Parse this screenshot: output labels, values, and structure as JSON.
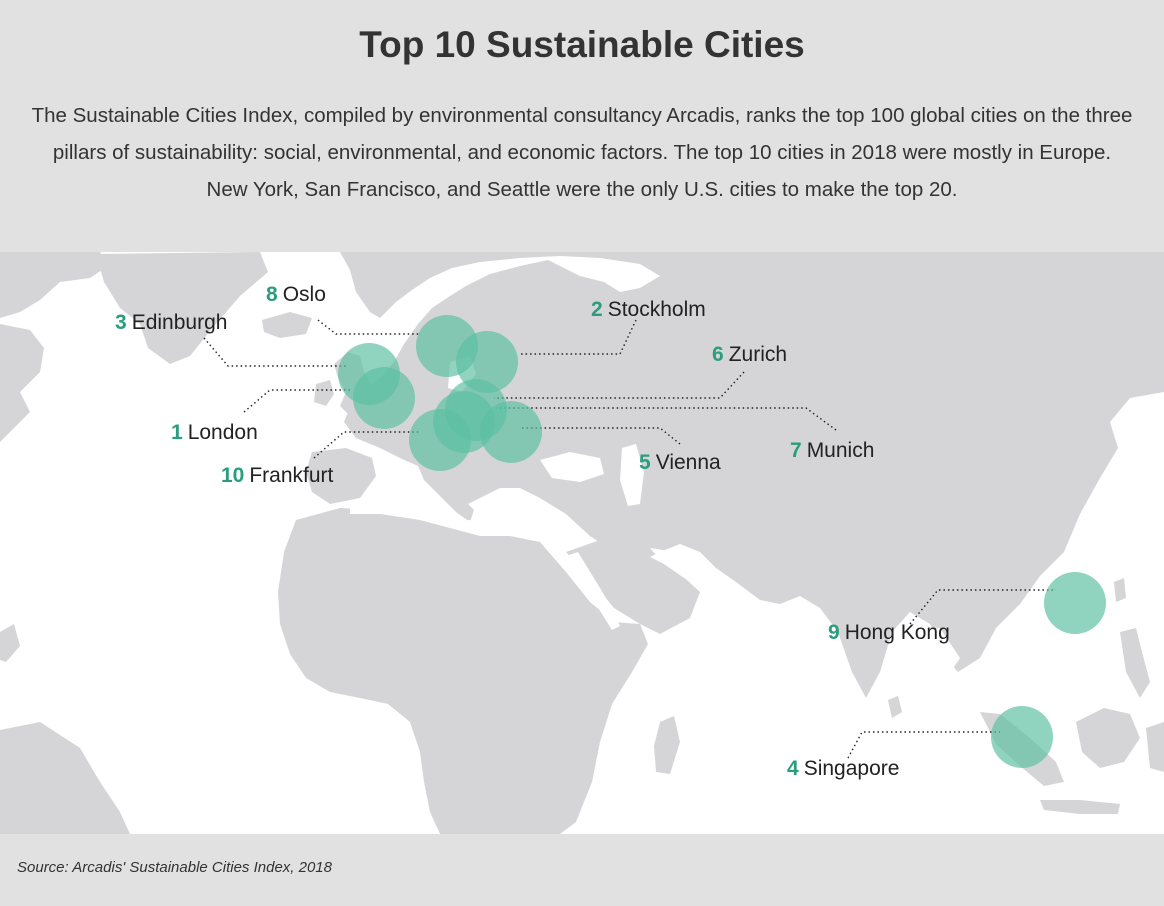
{
  "title": "Top 10 Sustainable Cities",
  "description": "The Sustainable Cities Index, compiled by environmental consultancy Arcadis, ranks the top 100 global cities on the three pillars of sustainability: social, environmental, and economic factors. The top 10 cities in 2018 were mostly in Europe. New York, San Francisco, and Seattle were the only U.S. cities to make the top 20.",
  "source": "Source: Arcadis' Sustainable Cities Index, 2018",
  "colors": {
    "land": "#d5d5d7",
    "water": "#ffffff",
    "marker": "#5bbfa2",
    "rank": "#2a9d7e",
    "background": "#e1e1e1"
  },
  "cities": [
    {
      "rank": "1",
      "name": "London"
    },
    {
      "rank": "2",
      "name": "Stockholm"
    },
    {
      "rank": "3",
      "name": "Edinburgh"
    },
    {
      "rank": "4",
      "name": "Singapore"
    },
    {
      "rank": "5",
      "name": "Vienna"
    },
    {
      "rank": "6",
      "name": "Zurich"
    },
    {
      "rank": "7",
      "name": "Munich"
    },
    {
      "rank": "8",
      "name": "Oslo"
    },
    {
      "rank": "9",
      "name": "Hong Kong"
    },
    {
      "rank": "10",
      "name": "Frankfurt"
    }
  ]
}
